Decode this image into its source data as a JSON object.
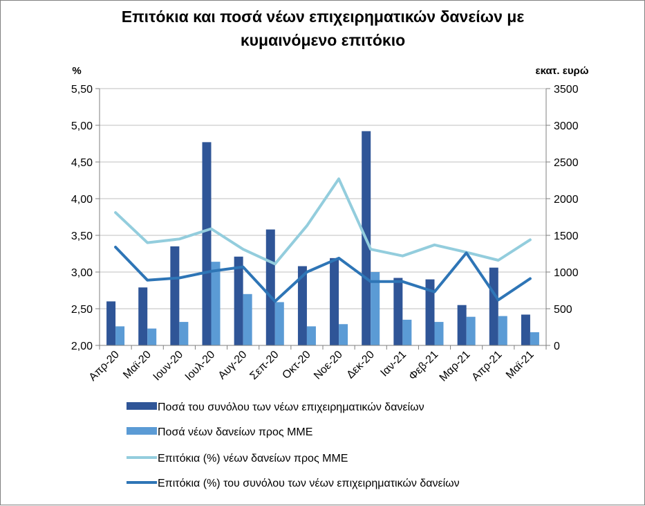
{
  "chart_data": {
    "type": "bar",
    "title_lines": [
      "Επιτόκια και ποσά νέων επιχειρηματικών δανείων με",
      "κυμαινόμενο επιτόκιο"
    ],
    "ylabel_left": "%",
    "ylabel_right": "εκατ. ευρώ",
    "ylim_left": [
      2.0,
      5.5
    ],
    "ylim_right": [
      0,
      3500
    ],
    "yticks_left": [
      "2,00",
      "2,50",
      "3,00",
      "3,50",
      "4,00",
      "4,50",
      "5,00",
      "5,50"
    ],
    "yticks_right": [
      "0",
      "500",
      "1000",
      "1500",
      "2000",
      "2500",
      "3000",
      "3500"
    ],
    "categories": [
      "Απρ-20",
      "Μαϊ-20",
      "Ιουν-20",
      "Ιουλ-20",
      "Αυγ-20",
      "Σεπ-20",
      "Οκτ-20",
      "Νοε-20",
      "Δεκ-20",
      "Ιαν-21",
      "Φεβ-21",
      "Μαρ-21",
      "Απρ-21",
      "Μαϊ-21"
    ],
    "series": [
      {
        "name": "Ποσά του συνόλου των νέων επιχειρηματικών δανείων",
        "kind": "bar",
        "axis": "right",
        "color": "#2f5597",
        "values": [
          600,
          790,
          1350,
          2770,
          1210,
          1580,
          1080,
          1190,
          2920,
          920,
          900,
          550,
          1060,
          420
        ]
      },
      {
        "name": "Ποσά νέων δανείων προς ΜΜΕ",
        "kind": "bar",
        "axis": "right",
        "color": "#5b9bd5",
        "values": [
          260,
          230,
          320,
          1140,
          700,
          590,
          260,
          290,
          1000,
          350,
          320,
          390,
          400,
          180
        ]
      },
      {
        "name": "Επιτόκια (%) νέων δανείων προς ΜΜΕ",
        "kind": "line",
        "axis": "left",
        "color": "#93cddd",
        "values": [
          3.81,
          3.4,
          3.45,
          3.59,
          3.31,
          3.11,
          3.63,
          4.27,
          3.31,
          3.22,
          3.37,
          3.27,
          3.16,
          3.44
        ]
      },
      {
        "name": "Επιτόκια (%) του συνόλου των νέων επιχειρηματικών δανείων",
        "kind": "line",
        "axis": "left",
        "color": "#2e75b6",
        "values": [
          3.34,
          2.89,
          2.92,
          3.01,
          3.07,
          2.6,
          3.0,
          3.19,
          2.87,
          2.87,
          2.73,
          3.26,
          2.62,
          2.91
        ]
      }
    ],
    "legend_position": "bottom"
  }
}
